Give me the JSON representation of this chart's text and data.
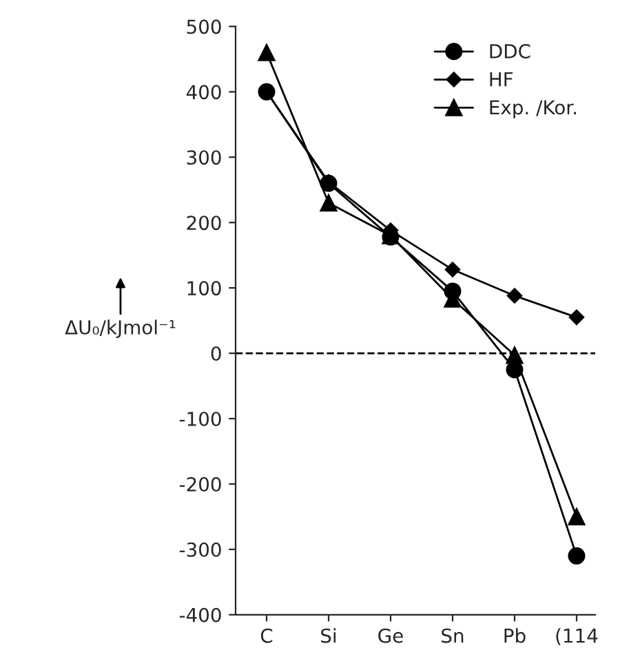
{
  "chart_data": {
    "type": "line",
    "ylabel": "ΔU₀/kJmol⁻¹",
    "categories": [
      "C",
      "Si",
      "Ge",
      "Sn",
      "Pb",
      "(114"
    ],
    "series": [
      {
        "name": "DDC",
        "color": "#000000",
        "marker": "circle",
        "values": [
          400,
          260,
          178,
          95,
          -25,
          -310
        ]
      },
      {
        "name": "HF",
        "color": "#000000",
        "marker": "diamond",
        "values": [
          400,
          262,
          188,
          128,
          88,
          55
        ]
      },
      {
        "name": "Exp. /Kor.",
        "color": "#000000",
        "marker": "triangle",
        "values": [
          460,
          230,
          180,
          83,
          -3,
          -250
        ]
      }
    ],
    "ylim": [
      -400,
      500
    ],
    "yticks": [
      -400,
      -300,
      -200,
      -100,
      0,
      100,
      200,
      300,
      400,
      500
    ],
    "ref_lines": [
      {
        "axis": "y",
        "value": 0,
        "color": "#000000",
        "line_style": "dashed"
      }
    ],
    "grid": false,
    "legend": "top right",
    "line_style": "solid"
  }
}
